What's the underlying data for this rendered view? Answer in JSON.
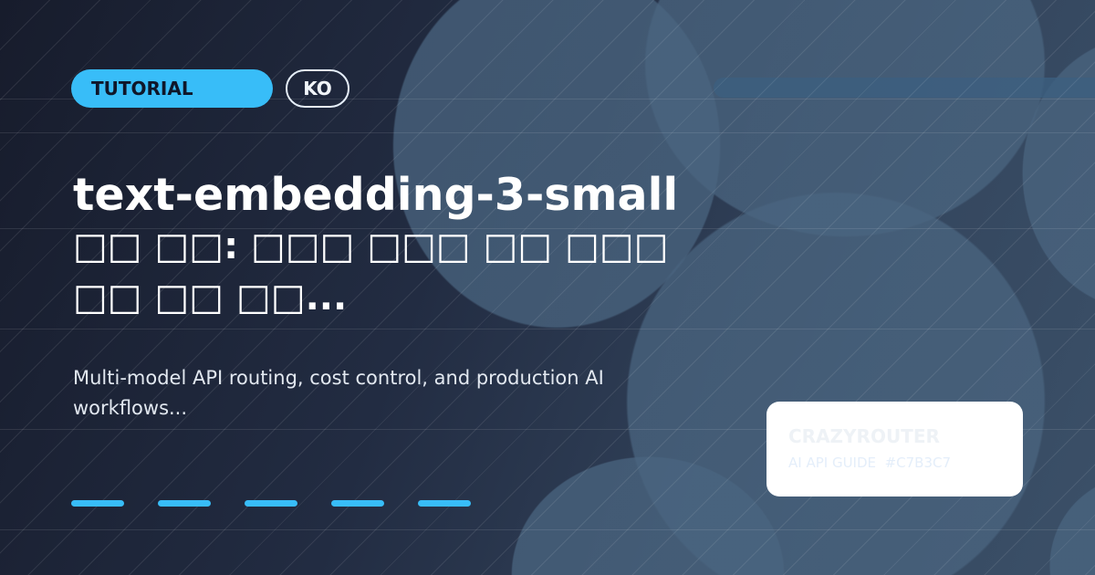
{
  "badges": {
    "category": "TUTORIAL",
    "language": "KO"
  },
  "title": {
    "line1": "text-embedding-3-small",
    "line2": "□□ □□: □□□ □□□ □□ □□□",
    "line3": "□□ □□ □□..."
  },
  "subtitle": "Multi-model API routing, cost control, and production AI workflows...",
  "card": {
    "brand": "CRAZYROUTER",
    "tagline": "AI API GUIDE",
    "code": "#C7B3C7"
  },
  "colors": {
    "accent": "#38bdf8",
    "background": "#1b2235"
  }
}
